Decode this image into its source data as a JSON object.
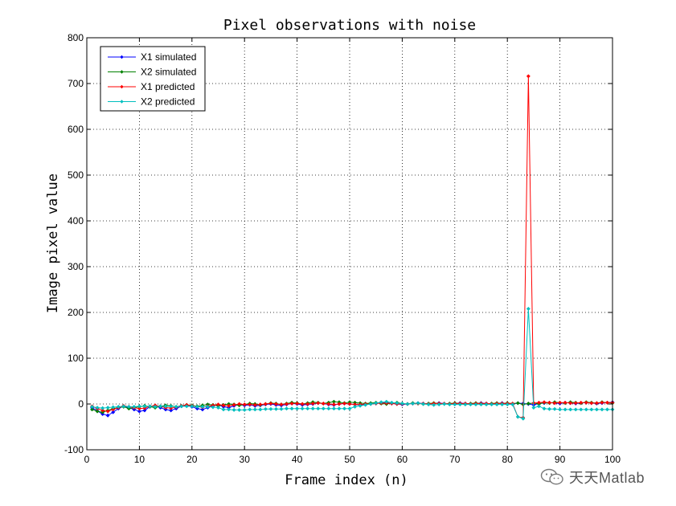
{
  "chart_data": {
    "type": "line",
    "title": "Pixel observations with noise",
    "xlabel": "Frame index (n)",
    "ylabel": "Image pixel value",
    "xlim": [
      0,
      100
    ],
    "ylim": [
      -100,
      800
    ],
    "xticks": [
      0,
      10,
      20,
      30,
      40,
      50,
      60,
      70,
      80,
      90,
      100
    ],
    "yticks": [
      -100,
      0,
      100,
      200,
      300,
      400,
      500,
      600,
      700,
      800
    ],
    "grid": true,
    "legend_position": "top-left",
    "x": [
      1,
      2,
      3,
      4,
      5,
      6,
      7,
      8,
      9,
      10,
      11,
      12,
      13,
      14,
      15,
      16,
      17,
      18,
      19,
      20,
      21,
      22,
      23,
      24,
      25,
      26,
      27,
      28,
      29,
      30,
      31,
      32,
      33,
      34,
      35,
      36,
      37,
      38,
      39,
      40,
      41,
      42,
      43,
      44,
      45,
      46,
      47,
      48,
      49,
      50,
      51,
      52,
      53,
      54,
      55,
      56,
      57,
      58,
      59,
      60,
      61,
      62,
      63,
      64,
      65,
      66,
      67,
      68,
      69,
      70,
      71,
      72,
      73,
      74,
      75,
      76,
      77,
      78,
      79,
      80,
      81,
      82,
      83,
      84,
      85,
      86,
      87,
      88,
      89,
      90,
      91,
      92,
      93,
      94,
      95,
      96,
      97,
      98,
      99,
      100
    ],
    "series": [
      {
        "name": "X1 simulated",
        "color": "#0000ff",
        "values": [
          -8,
          -15,
          -22,
          -25,
          -18,
          -10,
          -5,
          -8,
          -12,
          -16,
          -14,
          -6,
          -4,
          -8,
          -12,
          -14,
          -10,
          -5,
          -3,
          -6,
          -10,
          -12,
          -8,
          -4,
          -2,
          -6,
          -8,
          -4,
          -1,
          -3,
          -2,
          -4,
          -3,
          -1,
          0,
          -2,
          -3,
          -1,
          1,
          0,
          -2,
          -1,
          0,
          2,
          1,
          -1,
          -2,
          0,
          1,
          0,
          -1,
          -2,
          -1,
          0,
          1,
          2,
          3,
          1,
          0,
          -1,
          0,
          1,
          2,
          1,
          0,
          1,
          2,
          1,
          0,
          1,
          2,
          1,
          0,
          1,
          2,
          1,
          0,
          1,
          2,
          1,
          0,
          2,
          1,
          0,
          -2,
          1,
          2,
          3,
          2,
          1,
          3,
          2,
          1,
          2,
          3,
          2,
          1,
          2,
          3,
          4
        ]
      },
      {
        "name": "X2 simulated",
        "color": "#008000",
        "values": [
          -12,
          -16,
          -18,
          -14,
          -10,
          -8,
          -6,
          -10,
          -8,
          -6,
          -4,
          -6,
          -8,
          -5,
          -3,
          -4,
          -6,
          -4,
          -2,
          -3,
          -5,
          -3,
          -1,
          -2,
          -4,
          -2,
          0,
          -1,
          -3,
          -1,
          1,
          0,
          -2,
          0,
          2,
          1,
          -1,
          1,
          3,
          2,
          0,
          2,
          4,
          3,
          1,
          3,
          5,
          4,
          2,
          4,
          3,
          2,
          1,
          2,
          3,
          1,
          0,
          2,
          3,
          1,
          0,
          2,
          1,
          0,
          1,
          2,
          1,
          0,
          1,
          2,
          1,
          0,
          1,
          2,
          1,
          0,
          1,
          2,
          1,
          2,
          1,
          2,
          -1,
          1,
          2,
          0,
          3,
          2,
          4,
          3,
          2,
          4,
          3,
          2,
          4,
          3,
          2,
          4,
          3,
          2
        ]
      },
      {
        "name": "X1 predicted",
        "color": "#ff0000",
        "values": [
          -5,
          -10,
          -14,
          -16,
          -12,
          -8,
          -4,
          -6,
          -8,
          -10,
          -9,
          -5,
          -3,
          -5,
          -8,
          -9,
          -7,
          -4,
          -2,
          -4,
          -6,
          -7,
          -5,
          -3,
          -1,
          -3,
          -4,
          -2,
          0,
          -1,
          -1,
          -2,
          -1,
          0,
          1,
          0,
          -1,
          0,
          1,
          1,
          0,
          0,
          1,
          2,
          1,
          0,
          -1,
          0,
          1,
          0,
          -1,
          -1,
          0,
          0,
          1,
          2,
          2,
          1,
          0,
          0,
          0,
          1,
          1,
          1,
          0,
          1,
          1,
          1,
          0,
          1,
          1,
          1,
          0,
          1,
          1,
          1,
          0,
          1,
          1,
          1,
          1,
          -28,
          -30,
          716,
          2,
          3,
          4,
          3,
          2,
          3,
          3,
          2,
          2,
          3,
          3,
          2,
          2,
          3,
          3,
          3
        ]
      },
      {
        "name": "X2 predicted",
        "color": "#00bfbf",
        "values": [
          -6,
          -8,
          -9,
          -8,
          -7,
          -6,
          -5,
          -6,
          -6,
          -5,
          -5,
          -5,
          -6,
          -5,
          -5,
          -5,
          -6,
          -5,
          -5,
          -5,
          -6,
          -6,
          -6,
          -7,
          -8,
          -12,
          -12,
          -13,
          -13,
          -13,
          -12,
          -12,
          -12,
          -11,
          -11,
          -11,
          -11,
          -10,
          -10,
          -10,
          -10,
          -10,
          -10,
          -10,
          -10,
          -10,
          -10,
          -10,
          -10,
          -10,
          -6,
          -4,
          -2,
          0,
          2,
          4,
          5,
          3,
          2,
          1,
          0,
          1,
          2,
          0,
          -1,
          -2,
          -1,
          0,
          -1,
          -1,
          -1,
          -1,
          -1,
          -1,
          -1,
          -1,
          -1,
          -1,
          -1,
          -1,
          -1,
          -28,
          -32,
          208,
          -8,
          -5,
          -10,
          -11,
          -11,
          -12,
          -12,
          -12,
          -12,
          -12,
          -12,
          -12,
          -12,
          -12,
          -12,
          -12
        ]
      }
    ]
  },
  "watermark": {
    "text": "天天Matlab",
    "icon": "wechat-icon"
  }
}
